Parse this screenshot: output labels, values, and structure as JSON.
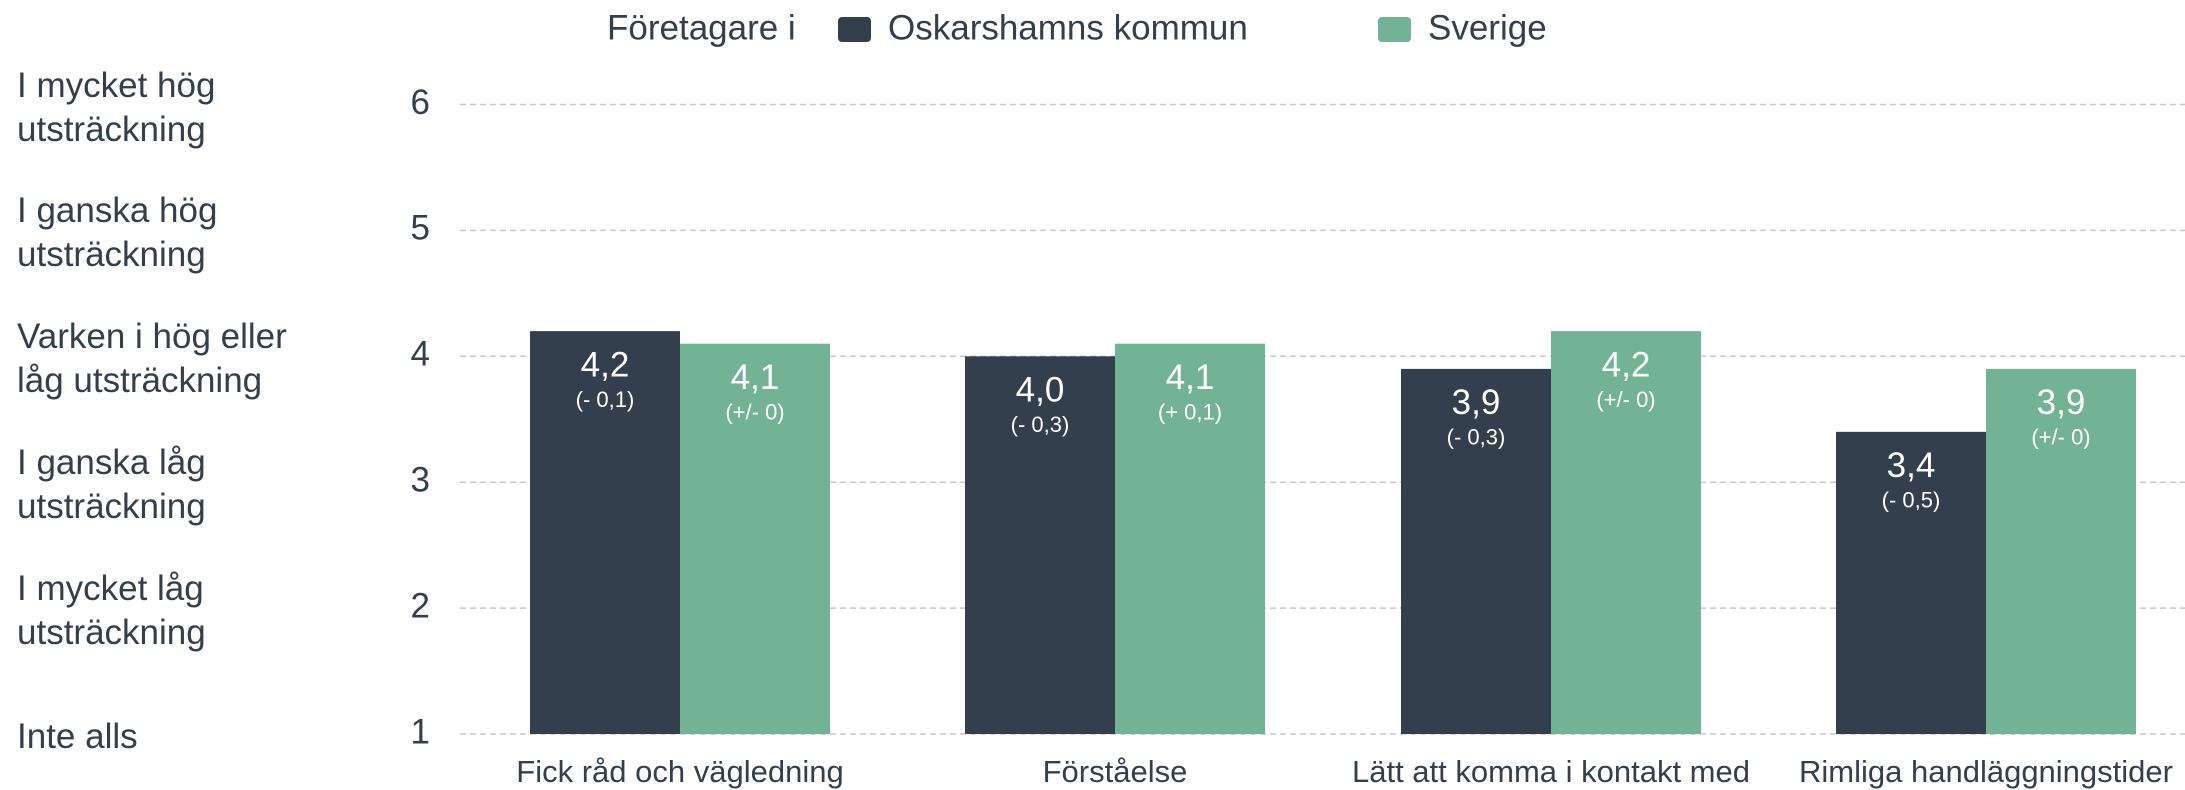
{
  "chart_data": {
    "type": "bar",
    "legend_title": "Företagare i",
    "categories": [
      "Fick råd och vägledning",
      "Förståelse",
      "Lätt att komma i kontakt med",
      "Rimliga handläggningstider"
    ],
    "series": [
      {
        "name": "Oskarshamns kommun",
        "color": "#333f4c",
        "values": [
          4.2,
          4.0,
          3.9,
          3.4
        ],
        "value_labels": [
          "4,2",
          "4,0",
          "3,9",
          "3,4"
        ],
        "change_labels": [
          "(- 0,1)",
          "(- 0,3)",
          "(- 0,3)",
          "(- 0,5)"
        ]
      },
      {
        "name": "Sverige",
        "color": "#72b396",
        "values": [
          4.1,
          4.1,
          4.2,
          3.9
        ],
        "value_labels": [
          "4,1",
          "4,1",
          "4,2",
          "3,9"
        ],
        "change_labels": [
          "(+/- 0)",
          "(+ 0,1)",
          "(+/- 0)",
          "(+/- 0)"
        ]
      }
    ],
    "ylim": [
      1,
      6
    ],
    "yticks": [
      1,
      2,
      3,
      4,
      5,
      6
    ],
    "ytick_descriptions": [
      "Inte alls",
      "I mycket låg utsträckning",
      "I ganska låg utsträckning",
      "Varken i hög eller låg utsträckning",
      "I ganska hög utsträckning",
      "I mycket hög utsträckning"
    ],
    "grid": true
  }
}
